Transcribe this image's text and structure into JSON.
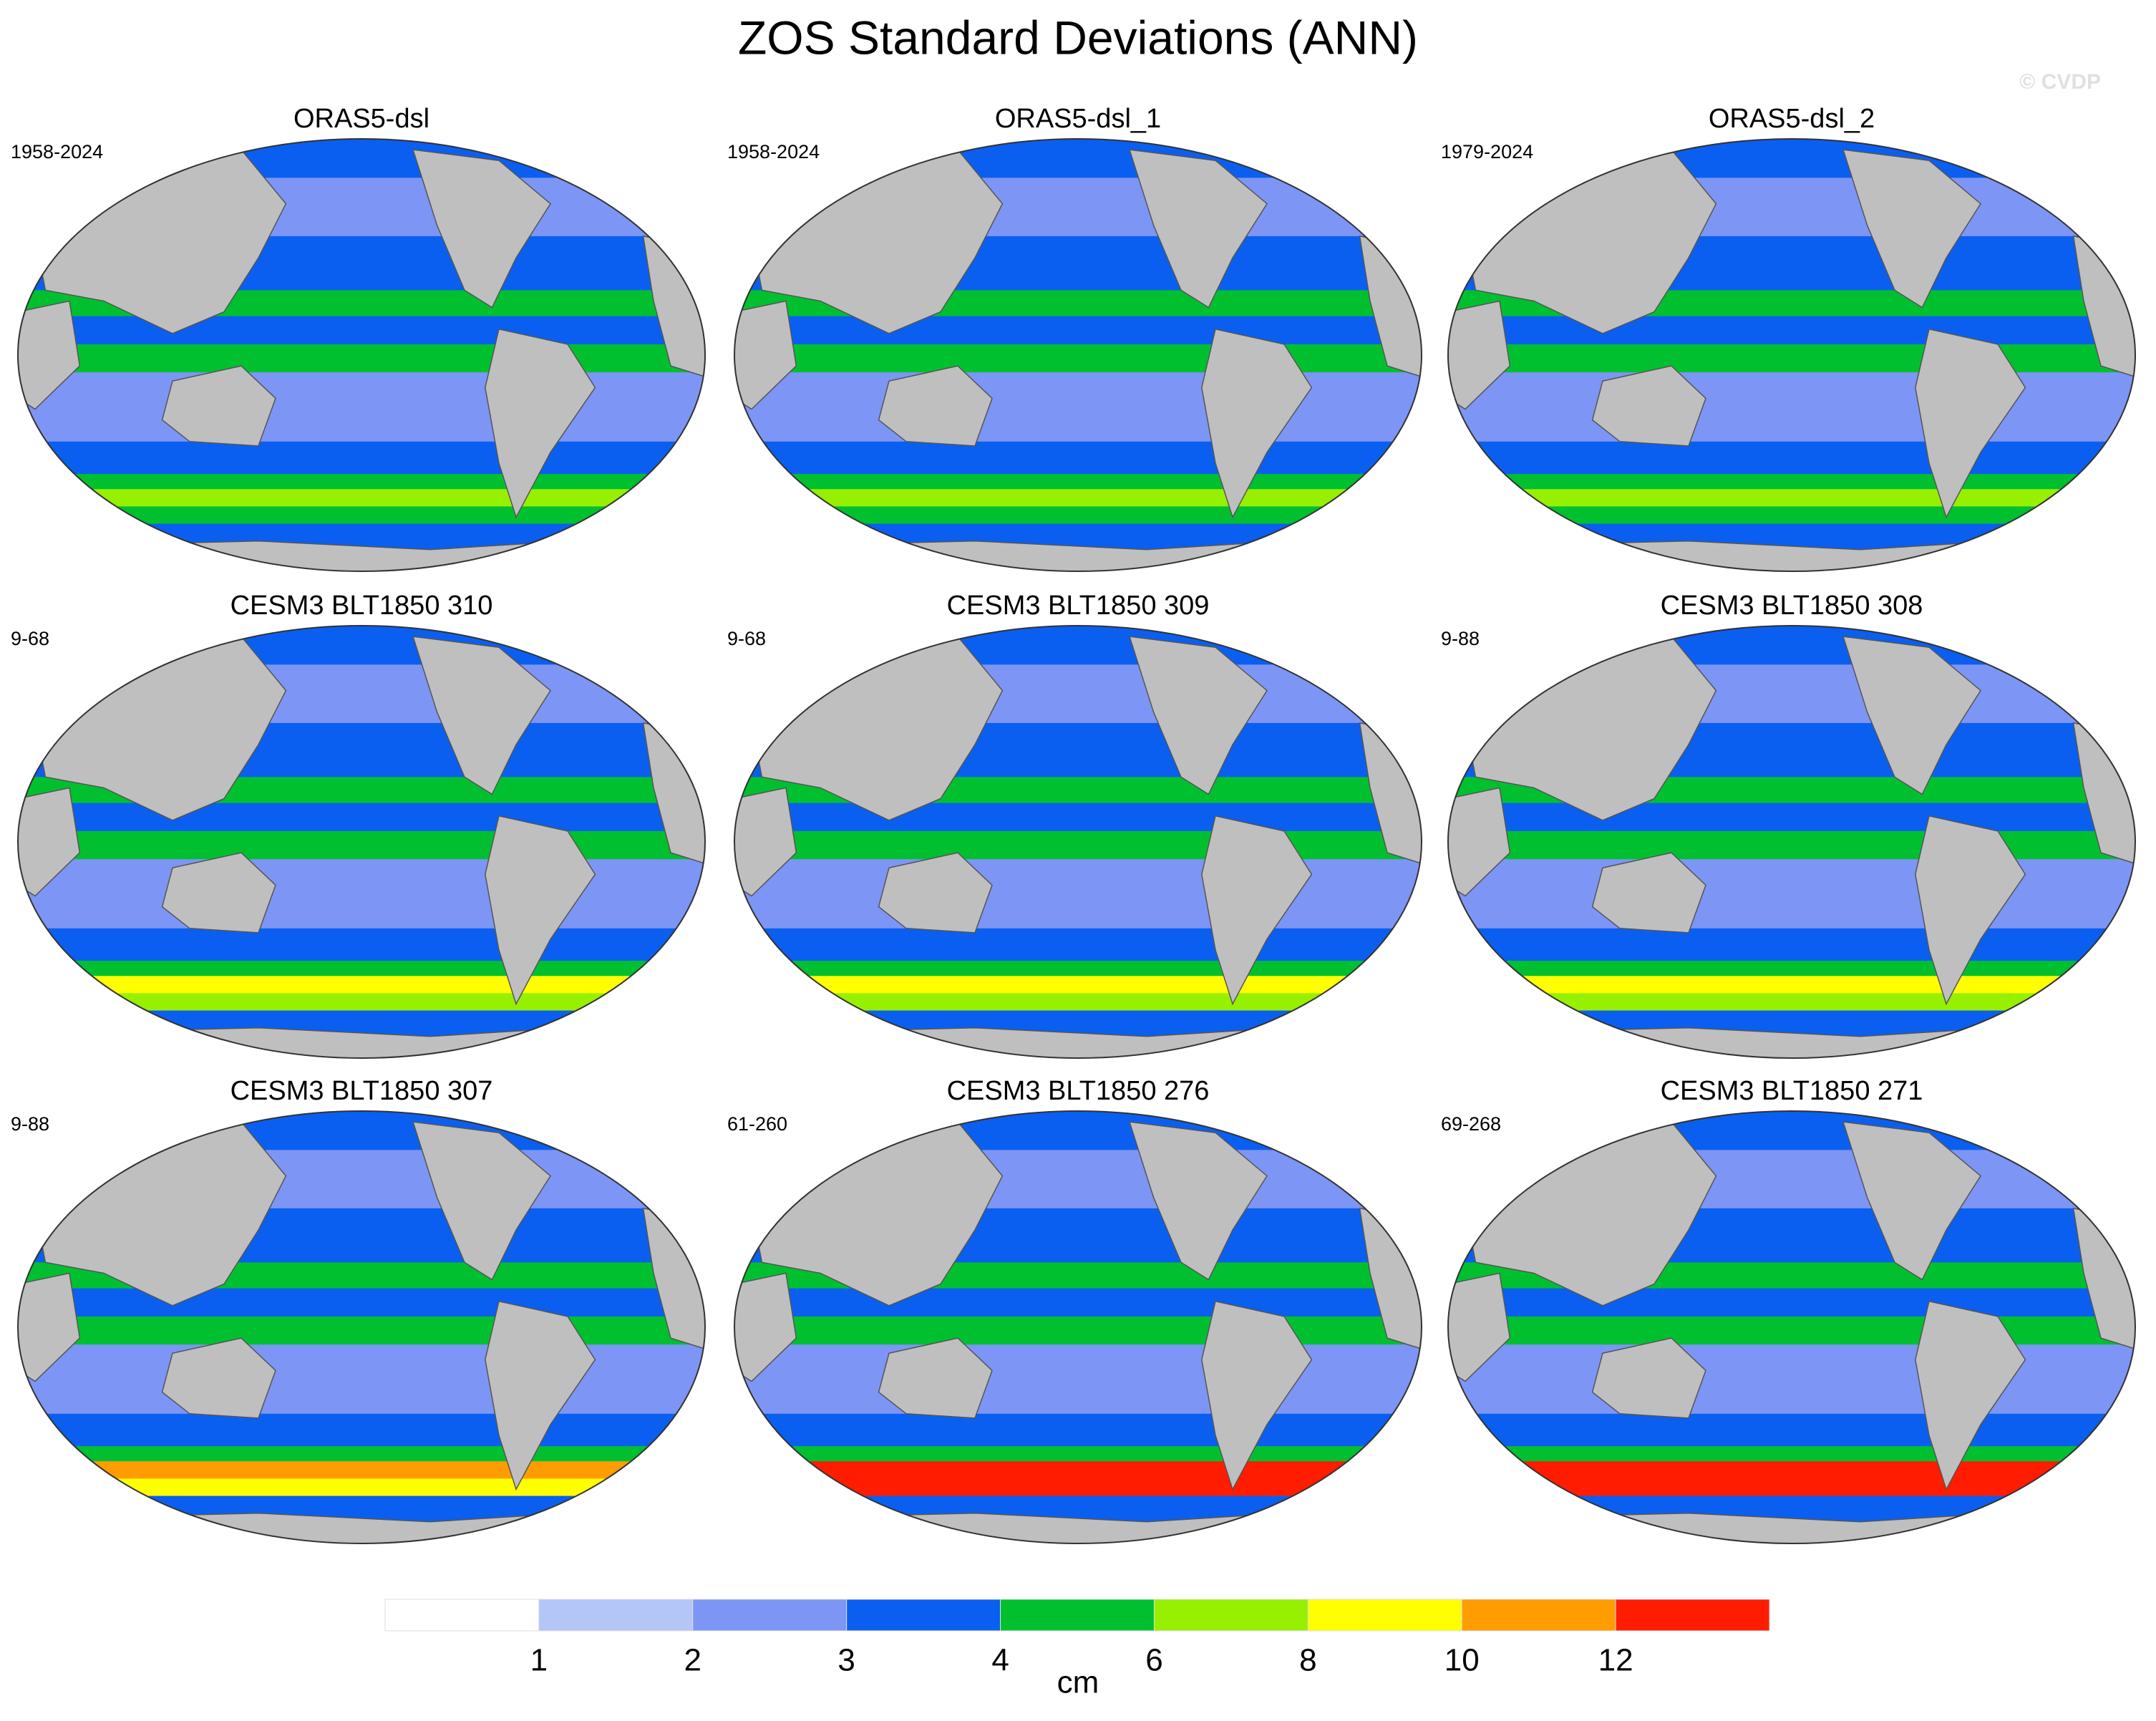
{
  "title": "ZOS Standard Deviations (ANN)",
  "watermark": "© CVDP",
  "panels": [
    {
      "title": "ORAS5-dsl",
      "years": "1958-2024"
    },
    {
      "title": "ORAS5-dsl_1",
      "years": "1958-2024"
    },
    {
      "title": "ORAS5-dsl_2",
      "years": "1979-2024"
    },
    {
      "title": "CESM3 BLT1850 310",
      "years": "9-68"
    },
    {
      "title": "CESM3 BLT1850 309",
      "years": "9-68"
    },
    {
      "title": "CESM3 BLT1850 308",
      "years": "9-88"
    },
    {
      "title": "CESM3 BLT1850 307",
      "years": "9-88"
    },
    {
      "title": "CESM3 BLT1850 276",
      "years": "61-260"
    },
    {
      "title": "CESM3 BLT1850 271",
      "years": "69-268"
    }
  ],
  "colorbar": {
    "levels": [
      1,
      2,
      3,
      4,
      6,
      8,
      10,
      12
    ],
    "colors": [
      "#ffffff",
      "#b3c6f7",
      "#7d95f5",
      "#0a5ff0",
      "#00c030",
      "#96f000",
      "#ffff00",
      "#ff9c00",
      "#ff1c00"
    ],
    "label": "cm"
  }
}
